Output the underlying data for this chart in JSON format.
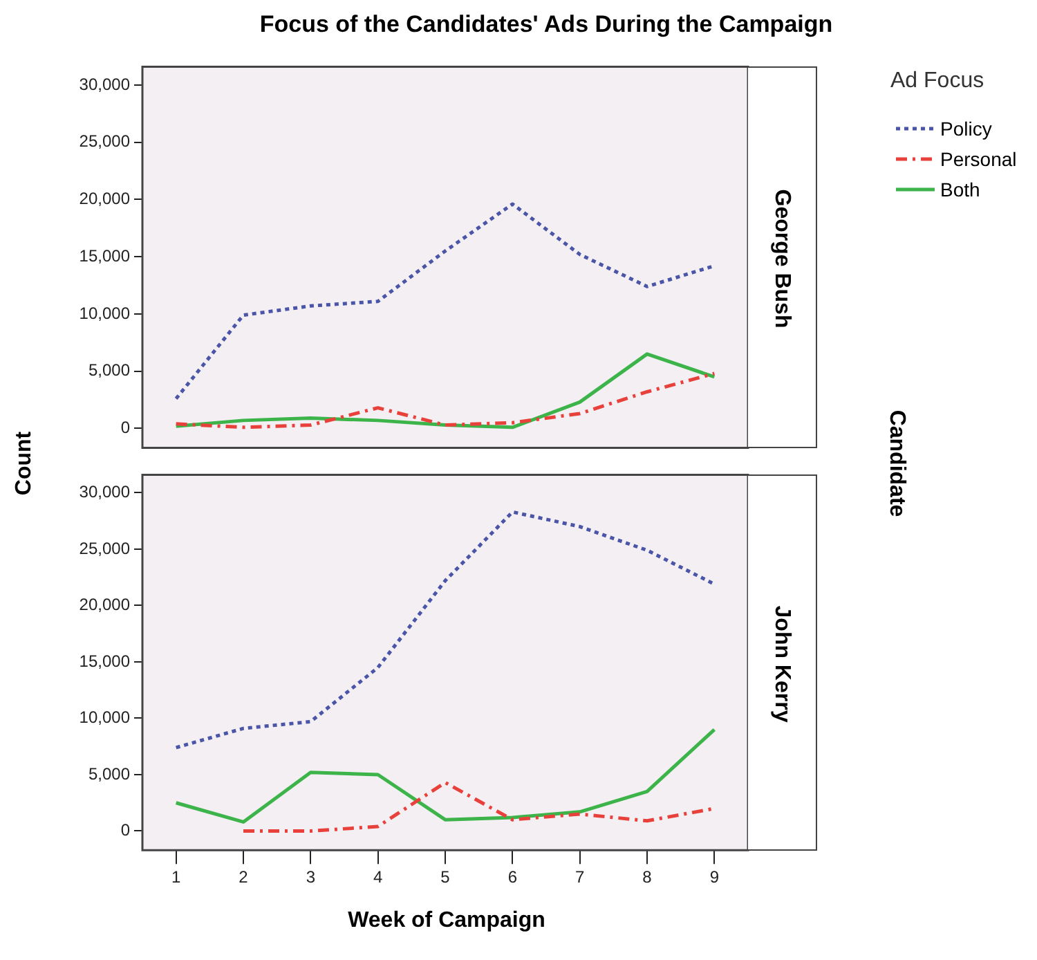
{
  "chart_data": [
    {
      "type": "line",
      "title": "Focus of the Candidates' Ads During the Campaign",
      "ylabel": "Count",
      "y2label": "George Bush",
      "legend_title": "Ad Focus",
      "legend": "top right",
      "annotations": [
        "Candidate"
      ],
      "tick_labels": "y",
      "categories": [
        "1",
        "2",
        "3",
        "4",
        "5",
        "6",
        "7",
        "8",
        "9"
      ],
      "ylim": [
        -1700,
        31600
      ],
      "yticks": [
        {
          "value": 0,
          "label": "0"
        },
        {
          "value": 5000,
          "label": "5,000"
        },
        {
          "value": 10000,
          "label": "10,000"
        },
        {
          "value": 15000,
          "label": "15,000"
        },
        {
          "value": 20000,
          "label": "20,000"
        },
        {
          "value": 25000,
          "label": "25,000"
        },
        {
          "value": 30000,
          "label": "30,000"
        }
      ],
      "series": [
        {
          "name": "Policy",
          "color": "#4a55a8",
          "line_style": "dotted",
          "values": [
            2600,
            9900,
            10700,
            11100,
            15500,
            19600,
            15200,
            12400,
            14200
          ]
        },
        {
          "name": "Personal",
          "color": "#e8413c",
          "line_style": "dashed",
          "values": [
            400,
            100,
            300,
            1800,
            300,
            500,
            1300,
            3200,
            4800
          ]
        },
        {
          "name": "Both",
          "color": "#3cb44a",
          "line_style": "solid",
          "values": [
            200,
            700,
            900,
            700,
            300,
            100,
            2300,
            6500,
            4500
          ]
        }
      ]
    },
    {
      "type": "line",
      "xlabel": "Week of Campaign",
      "y2label": "John Kerry",
      "categories": [
        "1",
        "2",
        "3",
        "4",
        "5",
        "6",
        "7",
        "8",
        "9"
      ],
      "ylim": [
        -1700,
        31600
      ],
      "yticks": [
        {
          "value": 0,
          "label": "0"
        },
        {
          "value": 5000,
          "label": "5,000"
        },
        {
          "value": 10000,
          "label": "10,000"
        },
        {
          "value": 15000,
          "label": "15,000"
        },
        {
          "value": 20000,
          "label": "20,000"
        },
        {
          "value": 25000,
          "label": "25,000"
        },
        {
          "value": 30000,
          "label": "30,000"
        }
      ],
      "series": [
        {
          "color": "#4a55a8",
          "line_style": "dotted",
          "values": [
            7400,
            9100,
            9700,
            14500,
            22200,
            28300,
            27000,
            24900,
            21900
          ]
        },
        {
          "color": "#e8413c",
          "line_style": "dashed",
          "values": [
            null,
            0,
            0,
            400,
            4300,
            1000,
            1500,
            900,
            2000
          ]
        },
        {
          "color": "#3cb44a",
          "line_style": "solid",
          "values": [
            2500,
            800,
            5200,
            5000,
            1000,
            1200,
            1700,
            3500,
            9000
          ]
        }
      ]
    }
  ]
}
